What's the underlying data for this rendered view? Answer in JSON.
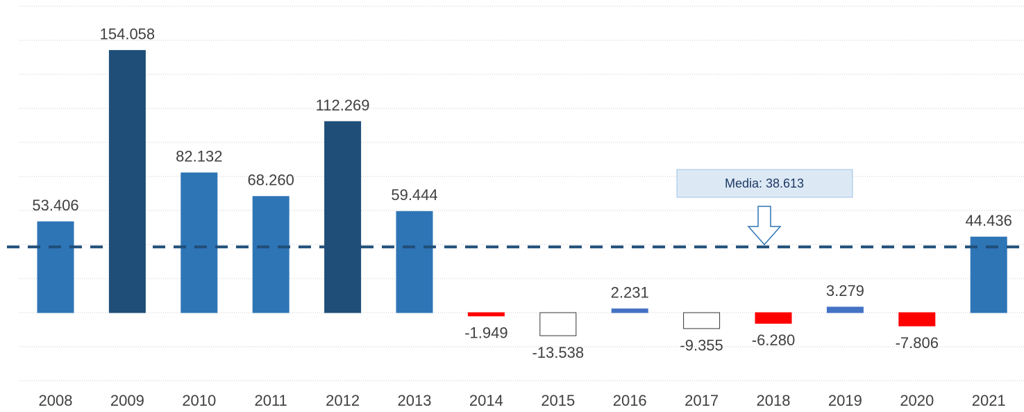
{
  "chart_data": {
    "type": "bar",
    "categories": [
      "2008",
      "2009",
      "2010",
      "2011",
      "2012",
      "2013",
      "2014",
      "2015",
      "2016",
      "2017",
      "2018",
      "2019",
      "2020",
      "2021"
    ],
    "values": [
      53.406,
      154.058,
      82.132,
      68.26,
      112.269,
      59.444,
      -1.949,
      -13.538,
      2.231,
      -9.355,
      -6.28,
      3.279,
      -7.806,
      44.436
    ],
    "value_labels": [
      "53.406",
      "154.058",
      "82.132",
      "68.260",
      "112.269",
      "59.444",
      "-1.949",
      "-13.538",
      "2.231",
      "-9.355",
      "-6.280",
      "3.279",
      "-7.806",
      "44.436"
    ],
    "colors": [
      "#2e75b6",
      "#1f4e79",
      "#2e75b6",
      "#2e75b6",
      "#1f4e79",
      "#2e75b6",
      "#ff0000",
      "#ffffff",
      "#4472c4",
      "#ffffff",
      "#ff0000",
      "#4472c4",
      "#ff0000",
      "#2e75b6"
    ],
    "mean": 38.613,
    "mean_label": "Media: 38.613",
    "mean_color": "#1f4e79",
    "ylim": [
      -40,
      180
    ],
    "yticks": [
      -40,
      -20,
      0,
      20,
      40,
      60,
      80,
      100,
      120,
      140,
      160,
      180
    ],
    "grid": true
  }
}
